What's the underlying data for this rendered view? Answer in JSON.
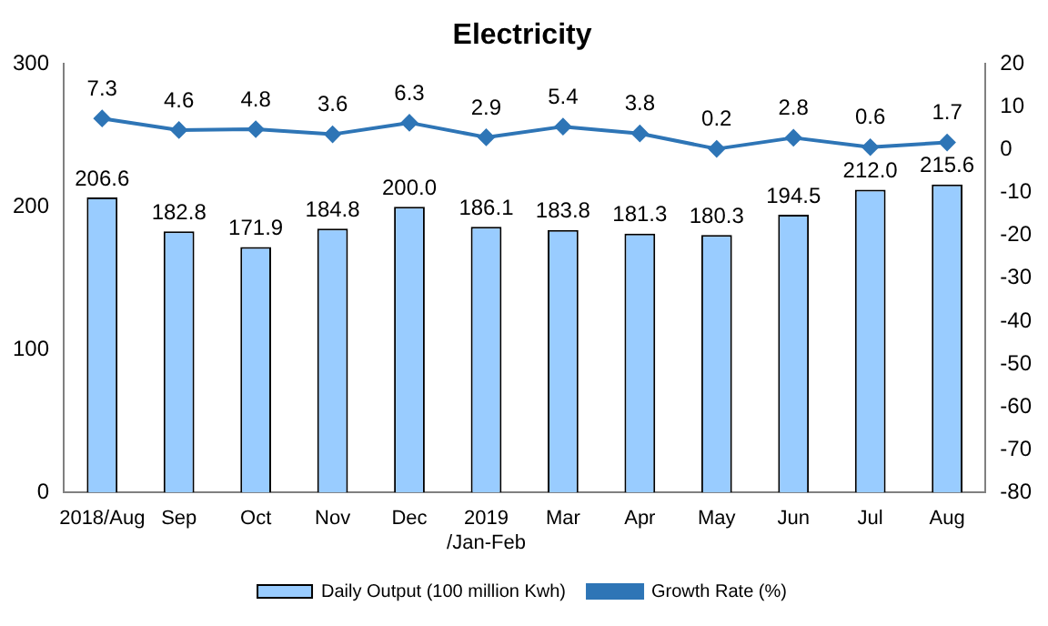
{
  "chart_data": {
    "type": "bar",
    "title": "Electricity",
    "categories": [
      "2018/Aug",
      "Sep",
      "Oct",
      "Nov",
      "Dec",
      "2019\n/Jan-Feb",
      "Mar",
      "Apr",
      "May",
      "Jun",
      "Jul",
      "Aug"
    ],
    "series": [
      {
        "name": "Daily Output (100 million Kwh)",
        "color": "#99ccff",
        "values": [
          206.6,
          182.8,
          171.9,
          184.8,
          200.0,
          186.1,
          183.8,
          181.3,
          180.3,
          194.5,
          212.0,
          215.6
        ],
        "value_labels": [
          "206.6",
          "182.8",
          "171.9",
          "184.8",
          "200.0",
          "186.1",
          "183.8",
          "181.3",
          "180.3",
          "194.5",
          "212.0",
          "215.6"
        ]
      },
      {
        "name": "Growth Rate (%)",
        "type": "line",
        "axis": "y2",
        "color": "#2e75b6",
        "values": [
          7.3,
          4.6,
          4.8,
          3.6,
          6.3,
          2.9,
          5.4,
          3.8,
          0.2,
          2.8,
          0.6,
          1.7
        ],
        "value_labels": [
          "7.3",
          "4.6",
          "4.8",
          "3.6",
          "6.3",
          "2.9",
          "5.4",
          "3.8",
          "0.2",
          "2.8",
          "0.6",
          "1.7"
        ]
      }
    ],
    "ylim": [
      0,
      300
    ],
    "yticks": [
      0,
      100,
      200,
      300
    ],
    "y2lim": [
      -80,
      20
    ],
    "y2ticks": [
      -80,
      -70,
      -60,
      -50,
      -40,
      -30,
      -20,
      -10,
      0,
      10,
      20
    ],
    "grid": false,
    "legend": "bottom",
    "marker": "diamond",
    "line_style": "solid"
  }
}
